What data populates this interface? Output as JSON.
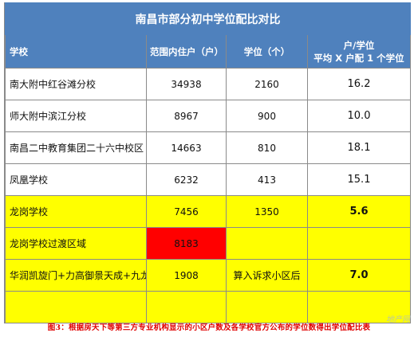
{
  "title": "南昌市部分初中学位配比对比",
  "headers": {
    "school": "学校",
    "households": "范围内住户（户）",
    "seats": "学位（个）",
    "ratio_line1": "户/学位",
    "ratio_line2": "平均 X 户配 1 个学位"
  },
  "rows": [
    {
      "school": "南大附中红谷滩分校",
      "households": "34938",
      "seats": "2160",
      "ratio": "16.2"
    },
    {
      "school": "师大附中滨江分校",
      "households": "8967",
      "seats": "900",
      "ratio": "10.0"
    },
    {
      "school": "南昌二中教育集团二十六中校区",
      "households": "14663",
      "seats": "810",
      "ratio": "18.1"
    },
    {
      "school": "凤凰学校",
      "households": "6232",
      "seats": "413",
      "ratio": "15.1"
    },
    {
      "school": "龙岗学校",
      "households": "7456",
      "seats": "1350",
      "ratio": "5.6"
    },
    {
      "school": "龙岗学校过渡区域",
      "households": "8183",
      "seats": "",
      "ratio": ""
    },
    {
      "school": "华润凯旋门+力高御景天成+九龙郡",
      "households": "1908",
      "seats": "算入诉求小区后",
      "ratio": "7.0"
    },
    {
      "school": "",
      "households": "",
      "seats": "",
      "ratio": ""
    }
  ],
  "caption": "图3：根据房天下等第三方专业机构显示的小区户数及各学校官方公布的学位数得出学位配比表",
  "watermark": "地产网"
}
